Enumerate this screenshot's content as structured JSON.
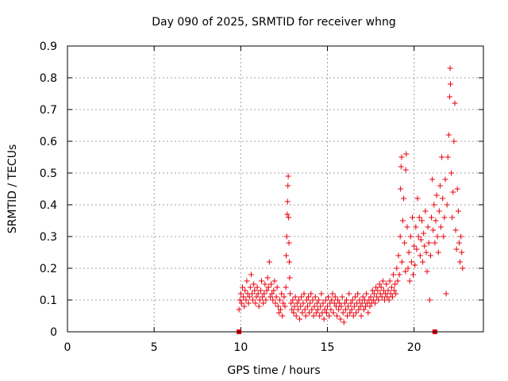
{
  "chart_data": {
    "type": "scatter",
    "title": "Day 090 of 2025, SRMTID for receiver whng",
    "xlabel": "GPS time / hours",
    "ylabel": "SRMTID / TECUs",
    "xlim": [
      0,
      24
    ],
    "ylim": [
      0,
      0.9
    ],
    "xticks": [
      "0",
      "5",
      "10",
      "15",
      "20"
    ],
    "xtick_values": [
      0,
      5,
      10,
      15,
      20
    ],
    "yticks": [
      "0",
      "0.1",
      "0.2",
      "0.3",
      "0.4",
      "0.5",
      "0.6",
      "0.7",
      "0.8",
      "0.9"
    ],
    "ytick_values": [
      0,
      0.1,
      0.2,
      0.3,
      0.4,
      0.5,
      0.6,
      0.7,
      0.8,
      0.9
    ],
    "grid": true,
    "marker": "+",
    "marker_color": "#e8000b",
    "baseline_markers": [
      {
        "x": 9.9,
        "y": 0
      },
      {
        "x": 21.2,
        "y": 0
      }
    ],
    "series": [
      {
        "name": "SRMTID",
        "points": [
          [
            9.9,
            0.07
          ],
          [
            9.95,
            0.1
          ],
          [
            10.0,
            0.12
          ],
          [
            10.05,
            0.09
          ],
          [
            10.1,
            0.14
          ],
          [
            10.15,
            0.11
          ],
          [
            10.2,
            0.08
          ],
          [
            10.25,
            0.13
          ],
          [
            10.3,
            0.1
          ],
          [
            10.35,
            0.16
          ],
          [
            10.4,
            0.12
          ],
          [
            10.45,
            0.09
          ],
          [
            10.5,
            0.11
          ],
          [
            10.55,
            0.14
          ],
          [
            10.6,
            0.18
          ],
          [
            10.65,
            0.12
          ],
          [
            10.7,
            0.1
          ],
          [
            10.75,
            0.15
          ],
          [
            10.8,
            0.13
          ],
          [
            10.85,
            0.09
          ],
          [
            10.9,
            0.11
          ],
          [
            10.95,
            0.14
          ],
          [
            11.0,
            0.12
          ],
          [
            11.05,
            0.08
          ],
          [
            11.1,
            0.1
          ],
          [
            11.15,
            0.13
          ],
          [
            11.2,
            0.16
          ],
          [
            11.25,
            0.11
          ],
          [
            11.3,
            0.09
          ],
          [
            11.35,
            0.12
          ],
          [
            11.4,
            0.15
          ],
          [
            11.45,
            0.1
          ],
          [
            11.5,
            0.13
          ],
          [
            11.55,
            0.17
          ],
          [
            11.6,
            0.14
          ],
          [
            11.65,
            0.22
          ],
          [
            11.7,
            0.11
          ],
          [
            11.75,
            0.15
          ],
          [
            11.8,
            0.12
          ],
          [
            11.85,
            0.1
          ],
          [
            11.9,
            0.13
          ],
          [
            11.95,
            0.16
          ],
          [
            12.0,
            0.09
          ],
          [
            12.05,
            0.11
          ],
          [
            12.1,
            0.14
          ],
          [
            12.15,
            0.08
          ],
          [
            12.2,
            0.06
          ],
          [
            12.25,
            0.1
          ],
          [
            12.3,
            0.07
          ],
          [
            12.35,
            0.12
          ],
          [
            12.4,
            0.05
          ],
          [
            12.45,
            0.09
          ],
          [
            12.5,
            0.11
          ],
          [
            12.55,
            0.08
          ],
          [
            12.6,
            0.14
          ],
          [
            12.62,
            0.24
          ],
          [
            12.65,
            0.3
          ],
          [
            12.68,
            0.37
          ],
          [
            12.7,
            0.41
          ],
          [
            12.72,
            0.46
          ],
          [
            12.74,
            0.49
          ],
          [
            12.76,
            0.36
          ],
          [
            12.78,
            0.28
          ],
          [
            12.8,
            0.22
          ],
          [
            12.82,
            0.17
          ],
          [
            12.85,
            0.12
          ],
          [
            12.9,
            0.09
          ],
          [
            12.95,
            0.07
          ],
          [
            13.0,
            0.1
          ],
          [
            13.05,
            0.06
          ],
          [
            13.1,
            0.08
          ],
          [
            13.15,
            0.11
          ],
          [
            13.2,
            0.05
          ],
          [
            13.25,
            0.09
          ],
          [
            13.3,
            0.07
          ],
          [
            13.35,
            0.1
          ],
          [
            13.4,
            0.04
          ],
          [
            13.45,
            0.08
          ],
          [
            13.5,
            0.11
          ],
          [
            13.55,
            0.06
          ],
          [
            13.6,
            0.09
          ],
          [
            13.65,
            0.12
          ],
          [
            13.7,
            0.07
          ],
          [
            13.75,
            0.05
          ],
          [
            13.8,
            0.1
          ],
          [
            13.85,
            0.08
          ],
          [
            13.9,
            0.11
          ],
          [
            13.95,
            0.06
          ],
          [
            14.0,
            0.09
          ],
          [
            14.05,
            0.12
          ],
          [
            14.1,
            0.07
          ],
          [
            14.15,
            0.1
          ],
          [
            14.2,
            0.05
          ],
          [
            14.25,
            0.08
          ],
          [
            14.3,
            0.11
          ],
          [
            14.35,
            0.06
          ],
          [
            14.4,
            0.09
          ],
          [
            14.45,
            0.07
          ],
          [
            14.5,
            0.1
          ],
          [
            14.55,
            0.05
          ],
          [
            14.6,
            0.08
          ],
          [
            14.65,
            0.12
          ],
          [
            14.7,
            0.06
          ],
          [
            14.75,
            0.09
          ],
          [
            14.8,
            0.04
          ],
          [
            14.85,
            0.07
          ],
          [
            14.9,
            0.1
          ],
          [
            14.95,
            0.06
          ],
          [
            15.0,
            0.08
          ],
          [
            15.05,
            0.11
          ],
          [
            15.1,
            0.05
          ],
          [
            15.15,
            0.09
          ],
          [
            15.2,
            0.07
          ],
          [
            15.25,
            0.1
          ],
          [
            15.3,
            0.12
          ],
          [
            15.35,
            0.06
          ],
          [
            15.4,
            0.09
          ],
          [
            15.45,
            0.11
          ],
          [
            15.5,
            0.08
          ],
          [
            15.55,
            0.05
          ],
          [
            15.6,
            0.1
          ],
          [
            15.65,
            0.07
          ],
          [
            15.7,
            0.09
          ],
          [
            15.75,
            0.04
          ],
          [
            15.8,
            0.08
          ],
          [
            15.85,
            0.11
          ],
          [
            15.9,
            0.06
          ],
          [
            15.95,
            0.03
          ],
          [
            16.0,
            0.09
          ],
          [
            16.05,
            0.07
          ],
          [
            16.1,
            0.1
          ],
          [
            16.15,
            0.05
          ],
          [
            16.2,
            0.08
          ],
          [
            16.25,
            0.12
          ],
          [
            16.3,
            0.06
          ],
          [
            16.35,
            0.09
          ],
          [
            16.4,
            0.07
          ],
          [
            16.45,
            0.1
          ],
          [
            16.5,
            0.05
          ],
          [
            16.55,
            0.08
          ],
          [
            16.6,
            0.11
          ],
          [
            16.65,
            0.06
          ],
          [
            16.7,
            0.09
          ],
          [
            16.75,
            0.12
          ],
          [
            16.8,
            0.07
          ],
          [
            16.85,
            0.1
          ],
          [
            16.9,
            0.08
          ],
          [
            16.95,
            0.05
          ],
          [
            17.0,
            0.09
          ],
          [
            17.05,
            0.11
          ],
          [
            17.1,
            0.07
          ],
          [
            17.15,
            0.1
          ],
          [
            17.2,
            0.08
          ],
          [
            17.25,
            0.12
          ],
          [
            17.3,
            0.09
          ],
          [
            17.35,
            0.06
          ],
          [
            17.4,
            0.1
          ],
          [
            17.45,
            0.08
          ],
          [
            17.5,
            0.11
          ],
          [
            17.55,
            0.09
          ],
          [
            17.6,
            0.13
          ],
          [
            17.65,
            0.1
          ],
          [
            17.7,
            0.12
          ],
          [
            17.75,
            0.09
          ],
          [
            17.8,
            0.14
          ],
          [
            17.85,
            0.11
          ],
          [
            17.9,
            0.13
          ],
          [
            17.95,
            0.1
          ],
          [
            18.0,
            0.15
          ],
          [
            18.05,
            0.12
          ],
          [
            18.1,
            0.14
          ],
          [
            18.15,
            0.11
          ],
          [
            18.2,
            0.16
          ],
          [
            18.25,
            0.13
          ],
          [
            18.3,
            0.1
          ],
          [
            18.35,
            0.12
          ],
          [
            18.4,
            0.15
          ],
          [
            18.45,
            0.11
          ],
          [
            18.5,
            0.13
          ],
          [
            18.55,
            0.1
          ],
          [
            18.6,
            0.16
          ],
          [
            18.65,
            0.12
          ],
          [
            18.7,
            0.14
          ],
          [
            18.75,
            0.11
          ],
          [
            18.8,
            0.18
          ],
          [
            18.85,
            0.13
          ],
          [
            18.9,
            0.15
          ],
          [
            18.95,
            0.12
          ],
          [
            19.0,
            0.2
          ],
          [
            19.05,
            0.16
          ],
          [
            19.1,
            0.24
          ],
          [
            19.15,
            0.18
          ],
          [
            19.2,
            0.3
          ],
          [
            19.22,
            0.45
          ],
          [
            19.25,
            0.52
          ],
          [
            19.28,
            0.55
          ],
          [
            19.3,
            0.22
          ],
          [
            19.35,
            0.35
          ],
          [
            19.4,
            0.42
          ],
          [
            19.45,
            0.28
          ],
          [
            19.5,
            0.19
          ],
          [
            19.52,
            0.51
          ],
          [
            19.55,
            0.56
          ],
          [
            19.6,
            0.33
          ],
          [
            19.65,
            0.2
          ],
          [
            19.7,
            0.25
          ],
          [
            19.75,
            0.16
          ],
          [
            19.8,
            0.3
          ],
          [
            19.85,
            0.22
          ],
          [
            19.9,
            0.36
          ],
          [
            19.95,
            0.18
          ],
          [
            20.0,
            0.27
          ],
          [
            20.05,
            0.21
          ],
          [
            20.1,
            0.33
          ],
          [
            20.15,
            0.26
          ],
          [
            20.2,
            0.42
          ],
          [
            20.25,
            0.3
          ],
          [
            20.3,
            0.36
          ],
          [
            20.35,
            0.24
          ],
          [
            20.4,
            0.29
          ],
          [
            20.45,
            0.35
          ],
          [
            20.5,
            0.22
          ],
          [
            20.55,
            0.31
          ],
          [
            20.6,
            0.27
          ],
          [
            20.65,
            0.38
          ],
          [
            20.7,
            0.25
          ],
          [
            20.75,
            0.19
          ],
          [
            20.8,
            0.33
          ],
          [
            20.85,
            0.28
          ],
          [
            20.9,
            0.1
          ],
          [
            20.95,
            0.24
          ],
          [
            21.0,
            0.36
          ],
          [
            21.05,
            0.48
          ],
          [
            21.1,
            0.32
          ],
          [
            21.15,
            0.4
          ],
          [
            21.2,
            0.28
          ],
          [
            21.25,
            0.35
          ],
          [
            21.3,
            0.43
          ],
          [
            21.35,
            0.3
          ],
          [
            21.4,
            0.25
          ],
          [
            21.45,
            0.38
          ],
          [
            21.5,
            0.46
          ],
          [
            21.55,
            0.33
          ],
          [
            21.6,
            0.55
          ],
          [
            21.65,
            0.42
          ],
          [
            21.7,
            0.3
          ],
          [
            21.75,
            0.36
          ],
          [
            21.8,
            0.48
          ],
          [
            21.85,
            0.12
          ],
          [
            21.9,
            0.4
          ],
          [
            21.95,
            0.55
          ],
          [
            22.0,
            0.62
          ],
          [
            22.05,
            0.74
          ],
          [
            22.08,
            0.83
          ],
          [
            22.1,
            0.78
          ],
          [
            22.15,
            0.5
          ],
          [
            22.2,
            0.36
          ],
          [
            22.25,
            0.44
          ],
          [
            22.3,
            0.6
          ],
          [
            22.35,
            0.72
          ],
          [
            22.4,
            0.32
          ],
          [
            22.45,
            0.26
          ],
          [
            22.5,
            0.45
          ],
          [
            22.55,
            0.38
          ],
          [
            22.6,
            0.28
          ],
          [
            22.65,
            0.22
          ],
          [
            22.7,
            0.3
          ],
          [
            22.75,
            0.25
          ],
          [
            22.8,
            0.2
          ]
        ]
      }
    ]
  }
}
